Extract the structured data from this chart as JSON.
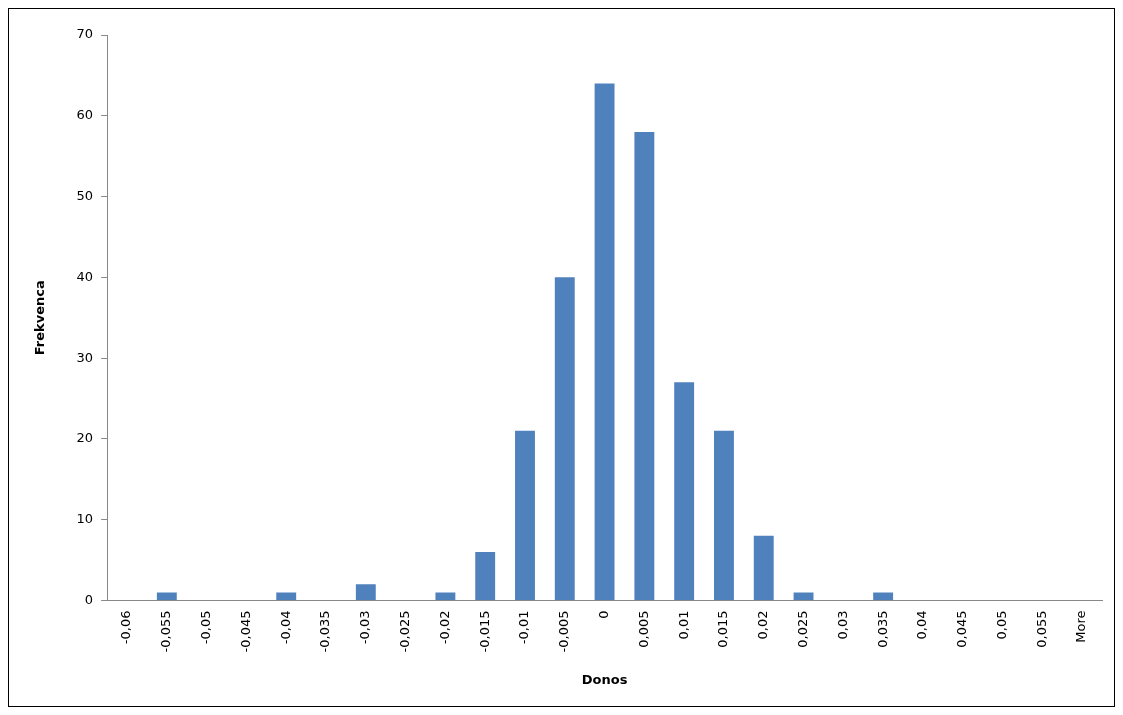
{
  "chart_data": {
    "type": "bar",
    "xlabel": "Donos",
    "ylabel": "Frekvenca",
    "categories": [
      "-0,06",
      "-0,055",
      "-0,05",
      "-0,045",
      "-0,04",
      "-0,035",
      "-0,03",
      "-0,025",
      "-0,02",
      "-0,015",
      "-0,01",
      "-0,005",
      "0",
      "0,005",
      "0,01",
      "0,015",
      "0,02",
      "0,025",
      "0,03",
      "0,035",
      "0,04",
      "0,045",
      "0,05",
      "0,055",
      "More"
    ],
    "values": [
      0,
      1,
      0,
      0,
      1,
      0,
      2,
      0,
      1,
      6,
      21,
      40,
      64,
      58,
      27,
      21,
      8,
      1,
      0,
      1,
      0,
      0,
      0,
      0,
      0
    ],
    "color": "#4f81bd",
    "ylim": [
      0,
      70
    ],
    "yticks": [
      0,
      10,
      20,
      30,
      40,
      50,
      60,
      70
    ],
    "grid": false,
    "legend": false
  }
}
